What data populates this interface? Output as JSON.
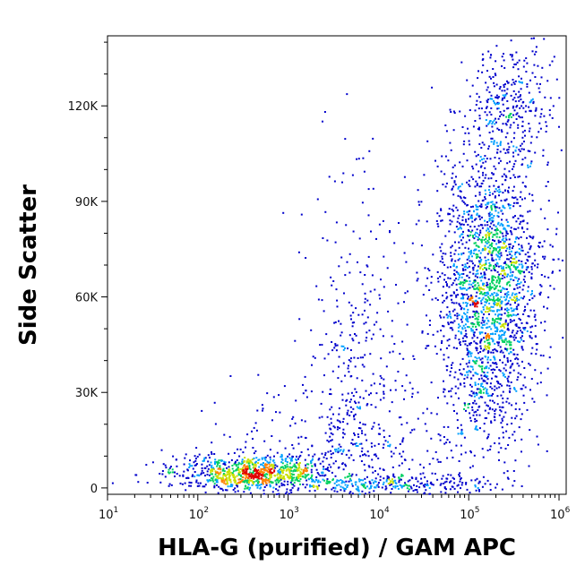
{
  "chart_data": {
    "type": "scatter",
    "subtype": "flow-cytometry-density-dot-plot",
    "title": "",
    "xlabel": "HLA-G (purified) / GAM APC",
    "ylabel": "Side Scatter",
    "x_scale": "log",
    "xlim": [
      10,
      1200000
    ],
    "ylim": [
      -2000,
      142000
    ],
    "x_ticks": [
      {
        "value": 10,
        "base": "10",
        "exp": "1"
      },
      {
        "value": 100,
        "base": "10",
        "exp": "2"
      },
      {
        "value": 1000,
        "base": "10",
        "exp": "3"
      },
      {
        "value": 10000,
        "base": "10",
        "exp": "4"
      },
      {
        "value": 100000,
        "base": "10",
        "exp": "5"
      },
      {
        "value": 1000000,
        "base": "10",
        "exp": "6"
      }
    ],
    "y_ticks": [
      {
        "value": 0,
        "label": "0"
      },
      {
        "value": 30000,
        "label": "30K"
      },
      {
        "value": 60000,
        "label": "60K"
      },
      {
        "value": 90000,
        "label": "90K"
      },
      {
        "value": 120000,
        "label": "120K"
      }
    ],
    "density_colors": [
      "#0000cc",
      "#00a0ff",
      "#00d060",
      "#c8e000",
      "#ff8000",
      "#e00000"
    ],
    "grid": false,
    "legend": "none",
    "populations": [
      {
        "x_center": 400,
        "y_center": 5000,
        "count": 900
      },
      {
        "x_center": 6000,
        "y_center": 40000,
        "count": 350
      },
      {
        "x_center": 160000,
        "y_center": 62000,
        "count": 2200
      },
      {
        "x_center": 15000,
        "y_center": 1500,
        "count": 250
      }
    ]
  }
}
